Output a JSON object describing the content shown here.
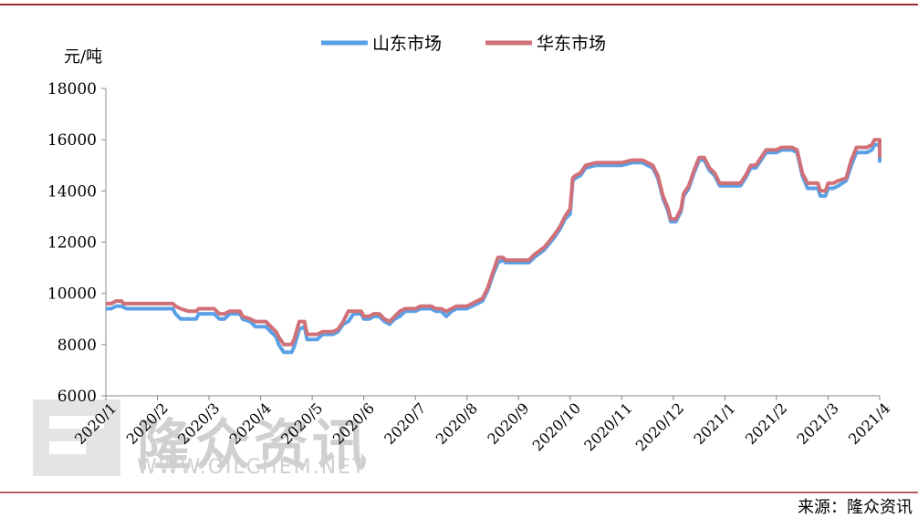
{
  "watermark": {
    "brand": "隆众资讯",
    "url": "WWW.OILCHEM.NET"
  },
  "source_label": "来源：隆众资讯",
  "colors": {
    "frame_line": "#9b2c2c",
    "shandong": "#5aa0e6",
    "huadong": "#d07078"
  },
  "chart_data": {
    "type": "line",
    "ylabel": "元/吨",
    "ylim": [
      6000,
      18000
    ],
    "yticks": [
      6000,
      8000,
      10000,
      12000,
      14000,
      16000,
      18000
    ],
    "x_ticks": [
      "2020/1",
      "2020/2",
      "2020/3",
      "2020/4",
      "2020/5",
      "2020/6",
      "2020/7",
      "2020/8",
      "2020/9",
      "2020/10",
      "2020/11",
      "2020/12",
      "2021/1",
      "2021/2",
      "2021/3",
      "2021/4"
    ],
    "x_domain": [
      0,
      15
    ],
    "legend_position": "top-center",
    "series": [
      {
        "name": "山东市场",
        "color": "#5aa0e6",
        "points": [
          [
            0,
            9400
          ],
          [
            0.1,
            9400
          ],
          [
            0.2,
            9500
          ],
          [
            0.3,
            9500
          ],
          [
            0.4,
            9400
          ],
          [
            1.0,
            9400
          ],
          [
            1.2,
            9400
          ],
          [
            1.3,
            9400
          ],
          [
            1.35,
            9200
          ],
          [
            1.45,
            9000
          ],
          [
            1.6,
            9000
          ],
          [
            1.75,
            9000
          ],
          [
            1.8,
            9200
          ],
          [
            2.0,
            9200
          ],
          [
            2.1,
            9200
          ],
          [
            2.2,
            9000
          ],
          [
            2.3,
            9000
          ],
          [
            2.4,
            9200
          ],
          [
            2.6,
            9200
          ],
          [
            2.65,
            9000
          ],
          [
            2.8,
            8900
          ],
          [
            2.9,
            8700
          ],
          [
            3.1,
            8700
          ],
          [
            3.2,
            8500
          ],
          [
            3.3,
            8300
          ],
          [
            3.35,
            8000
          ],
          [
            3.45,
            7700
          ],
          [
            3.6,
            7700
          ],
          [
            3.65,
            7900
          ],
          [
            3.75,
            8600
          ],
          [
            3.85,
            8700
          ],
          [
            3.9,
            8200
          ],
          [
            4.1,
            8200
          ],
          [
            4.2,
            8400
          ],
          [
            4.4,
            8400
          ],
          [
            4.5,
            8500
          ],
          [
            4.6,
            8800
          ],
          [
            4.7,
            8900
          ],
          [
            4.8,
            9200
          ],
          [
            4.95,
            9200
          ],
          [
            5.0,
            9000
          ],
          [
            5.1,
            9000
          ],
          [
            5.2,
            9100
          ],
          [
            5.3,
            9100
          ],
          [
            5.4,
            8900
          ],
          [
            5.5,
            8800
          ],
          [
            5.6,
            9000
          ],
          [
            5.7,
            9100
          ],
          [
            5.8,
            9300
          ],
          [
            6.0,
            9300
          ],
          [
            6.1,
            9400
          ],
          [
            6.3,
            9400
          ],
          [
            6.4,
            9300
          ],
          [
            6.5,
            9300
          ],
          [
            6.6,
            9100
          ],
          [
            6.7,
            9300
          ],
          [
            6.8,
            9400
          ],
          [
            7.0,
            9400
          ],
          [
            7.1,
            9500
          ],
          [
            7.2,
            9600
          ],
          [
            7.3,
            9700
          ],
          [
            7.4,
            10100
          ],
          [
            7.5,
            10700
          ],
          [
            7.6,
            11200
          ],
          [
            7.7,
            11300
          ],
          [
            7.75,
            11200
          ],
          [
            8.0,
            11200
          ],
          [
            8.1,
            11200
          ],
          [
            8.2,
            11200
          ],
          [
            8.3,
            11400
          ],
          [
            8.5,
            11700
          ],
          [
            8.7,
            12200
          ],
          [
            8.8,
            12500
          ],
          [
            8.9,
            12900
          ],
          [
            9.0,
            13100
          ],
          [
            9.05,
            14400
          ],
          [
            9.1,
            14500
          ],
          [
            9.2,
            14600
          ],
          [
            9.3,
            14900
          ],
          [
            9.5,
            15000
          ],
          [
            9.8,
            15000
          ],
          [
            10.0,
            15000
          ],
          [
            10.2,
            15100
          ],
          [
            10.4,
            15100
          ],
          [
            10.5,
            15000
          ],
          [
            10.6,
            14900
          ],
          [
            10.7,
            14500
          ],
          [
            10.8,
            13700
          ],
          [
            10.9,
            13200
          ],
          [
            10.95,
            12800
          ],
          [
            11.05,
            12800
          ],
          [
            11.15,
            13200
          ],
          [
            11.2,
            13800
          ],
          [
            11.3,
            14100
          ],
          [
            11.4,
            14700
          ],
          [
            11.5,
            15200
          ],
          [
            11.6,
            15200
          ],
          [
            11.7,
            14800
          ],
          [
            11.8,
            14600
          ],
          [
            11.9,
            14200
          ],
          [
            12.0,
            14200
          ],
          [
            12.3,
            14200
          ],
          [
            12.4,
            14500
          ],
          [
            12.5,
            14900
          ],
          [
            12.6,
            14900
          ],
          [
            12.7,
            15200
          ],
          [
            12.8,
            15500
          ],
          [
            13.0,
            15500
          ],
          [
            13.1,
            15600
          ],
          [
            13.3,
            15600
          ],
          [
            13.4,
            15500
          ],
          [
            13.5,
            14600
          ],
          [
            13.6,
            14100
          ],
          [
            13.8,
            14100
          ],
          [
            13.85,
            13800
          ],
          [
            13.95,
            13800
          ],
          [
            14.0,
            14100
          ],
          [
            14.1,
            14100
          ],
          [
            14.2,
            14200
          ],
          [
            14.35,
            14400
          ],
          [
            14.45,
            15000
          ],
          [
            14.55,
            15500
          ],
          [
            14.75,
            15500
          ],
          [
            14.85,
            15600
          ],
          [
            14.9,
            15800
          ],
          [
            15.3,
            15800
          ],
          [
            15.45,
            15400
          ],
          [
            15.55,
            15300
          ],
          [
            15.6,
            15100
          ]
        ]
      },
      {
        "name": "华东市场",
        "color": "#d07078",
        "points": [
          [
            0,
            9600
          ],
          [
            0.1,
            9600
          ],
          [
            0.2,
            9700
          ],
          [
            0.3,
            9700
          ],
          [
            0.35,
            9600
          ],
          [
            1.0,
            9600
          ],
          [
            1.2,
            9600
          ],
          [
            1.3,
            9600
          ],
          [
            1.35,
            9500
          ],
          [
            1.45,
            9400
          ],
          [
            1.6,
            9300
          ],
          [
            1.75,
            9300
          ],
          [
            1.8,
            9400
          ],
          [
            2.0,
            9400
          ],
          [
            2.1,
            9400
          ],
          [
            2.2,
            9200
          ],
          [
            2.3,
            9200
          ],
          [
            2.4,
            9300
          ],
          [
            2.6,
            9300
          ],
          [
            2.65,
            9100
          ],
          [
            2.8,
            9000
          ],
          [
            2.9,
            8900
          ],
          [
            3.1,
            8900
          ],
          [
            3.2,
            8700
          ],
          [
            3.3,
            8500
          ],
          [
            3.35,
            8300
          ],
          [
            3.45,
            8000
          ],
          [
            3.6,
            8000
          ],
          [
            3.65,
            8200
          ],
          [
            3.75,
            8900
          ],
          [
            3.85,
            8900
          ],
          [
            3.9,
            8400
          ],
          [
            4.1,
            8400
          ],
          [
            4.2,
            8500
          ],
          [
            4.4,
            8500
          ],
          [
            4.5,
            8600
          ],
          [
            4.6,
            8900
          ],
          [
            4.7,
            9300
          ],
          [
            4.8,
            9300
          ],
          [
            4.95,
            9300
          ],
          [
            5.0,
            9100
          ],
          [
            5.1,
            9100
          ],
          [
            5.2,
            9200
          ],
          [
            5.3,
            9200
          ],
          [
            5.4,
            9000
          ],
          [
            5.5,
            8900
          ],
          [
            5.6,
            9100
          ],
          [
            5.7,
            9300
          ],
          [
            5.8,
            9400
          ],
          [
            6.0,
            9400
          ],
          [
            6.1,
            9500
          ],
          [
            6.3,
            9500
          ],
          [
            6.4,
            9400
          ],
          [
            6.5,
            9400
          ],
          [
            6.6,
            9300
          ],
          [
            6.7,
            9400
          ],
          [
            6.8,
            9500
          ],
          [
            7.0,
            9500
          ],
          [
            7.1,
            9600
          ],
          [
            7.2,
            9700
          ],
          [
            7.3,
            9800
          ],
          [
            7.4,
            10200
          ],
          [
            7.5,
            10800
          ],
          [
            7.6,
            11400
          ],
          [
            7.7,
            11400
          ],
          [
            7.75,
            11300
          ],
          [
            8.0,
            11300
          ],
          [
            8.1,
            11300
          ],
          [
            8.2,
            11300
          ],
          [
            8.3,
            11500
          ],
          [
            8.5,
            11800
          ],
          [
            8.7,
            12300
          ],
          [
            8.8,
            12600
          ],
          [
            8.9,
            13000
          ],
          [
            9.0,
            13300
          ],
          [
            9.05,
            14500
          ],
          [
            9.1,
            14600
          ],
          [
            9.2,
            14700
          ],
          [
            9.3,
            15000
          ],
          [
            9.5,
            15100
          ],
          [
            9.8,
            15100
          ],
          [
            10.0,
            15100
          ],
          [
            10.2,
            15200
          ],
          [
            10.4,
            15200
          ],
          [
            10.5,
            15100
          ],
          [
            10.6,
            15000
          ],
          [
            10.7,
            14600
          ],
          [
            10.8,
            13800
          ],
          [
            10.9,
            13300
          ],
          [
            10.95,
            12900
          ],
          [
            11.05,
            12900
          ],
          [
            11.15,
            13300
          ],
          [
            11.2,
            13900
          ],
          [
            11.3,
            14200
          ],
          [
            11.4,
            14800
          ],
          [
            11.5,
            15300
          ],
          [
            11.6,
            15300
          ],
          [
            11.7,
            14900
          ],
          [
            11.8,
            14700
          ],
          [
            11.9,
            14300
          ],
          [
            12.0,
            14300
          ],
          [
            12.3,
            14300
          ],
          [
            12.4,
            14600
          ],
          [
            12.5,
            15000
          ],
          [
            12.6,
            15000
          ],
          [
            12.7,
            15300
          ],
          [
            12.8,
            15600
          ],
          [
            13.0,
            15600
          ],
          [
            13.1,
            15700
          ],
          [
            13.3,
            15700
          ],
          [
            13.4,
            15600
          ],
          [
            13.5,
            14700
          ],
          [
            13.6,
            14300
          ],
          [
            13.8,
            14300
          ],
          [
            13.85,
            14000
          ],
          [
            13.95,
            14000
          ],
          [
            14.0,
            14300
          ],
          [
            14.1,
            14300
          ],
          [
            14.2,
            14400
          ],
          [
            14.35,
            14500
          ],
          [
            14.45,
            15200
          ],
          [
            14.55,
            15700
          ],
          [
            14.75,
            15700
          ],
          [
            14.85,
            15800
          ],
          [
            14.9,
            16000
          ],
          [
            15.3,
            16000
          ],
          [
            15.45,
            15600
          ],
          [
            15.55,
            15500
          ],
          [
            15.6,
            15300
          ]
        ]
      }
    ]
  }
}
